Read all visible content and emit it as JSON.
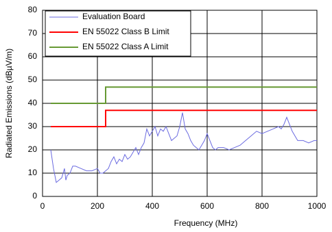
{
  "chart_data": {
    "type": "line",
    "xlabel": "Frequency (MHz)",
    "ylabel": "Radiated Emissions (dBµV/m)",
    "xlim": [
      0,
      1000
    ],
    "ylim": [
      0,
      80
    ],
    "xticks": [
      0,
      200,
      400,
      600,
      800,
      1000
    ],
    "yticks": [
      0,
      10,
      20,
      30,
      40,
      50,
      60,
      70,
      80
    ],
    "grid": true,
    "legend": "upper left",
    "series": [
      {
        "name": "Evaluation Board",
        "color": "#6a6ae0",
        "x": [
          30,
          40,
          50,
          60,
          70,
          80,
          85,
          90,
          100,
          110,
          120,
          140,
          160,
          180,
          200,
          210,
          220,
          230,
          240,
          250,
          260,
          270,
          280,
          290,
          300,
          310,
          320,
          330,
          340,
          350,
          360,
          370,
          380,
          390,
          400,
          410,
          420,
          430,
          440,
          450,
          460,
          470,
          480,
          490,
          500,
          510,
          520,
          530,
          540,
          550,
          560,
          570,
          580,
          590,
          600,
          610,
          620,
          630,
          640,
          660,
          680,
          700,
          720,
          740,
          760,
          780,
          800,
          820,
          840,
          860,
          870,
          880,
          890,
          900,
          910,
          920,
          930,
          950,
          970,
          990,
          1000
        ],
        "values": [
          20,
          12,
          6,
          7,
          8,
          12,
          7,
          9,
          10,
          13,
          13,
          12,
          11,
          11,
          12,
          10,
          10,
          11,
          12,
          15,
          17,
          14,
          16,
          15,
          18,
          16,
          17,
          19,
          21,
          18,
          21,
          23,
          29,
          26,
          28,
          30,
          26,
          29,
          28,
          30,
          27,
          24,
          25,
          26,
          30,
          36,
          29,
          27,
          24,
          22,
          21,
          20,
          22,
          24,
          27,
          24,
          21,
          20,
          21,
          21,
          20,
          21,
          22,
          24,
          26,
          28,
          27,
          28,
          29,
          30,
          29,
          31,
          34,
          31,
          28,
          26,
          24,
          24,
          23,
          24,
          24
        ]
      },
      {
        "name": "EN 55022 Class B Limit",
        "color": "#ff0000",
        "x": [
          30,
          230,
          230,
          1000
        ],
        "values": [
          30,
          30,
          37,
          37
        ]
      },
      {
        "name": "EN 55022 Class A Limit",
        "color": "#669933",
        "x": [
          30,
          230,
          230,
          1000
        ],
        "values": [
          40,
          40,
          47,
          47
        ]
      }
    ]
  }
}
